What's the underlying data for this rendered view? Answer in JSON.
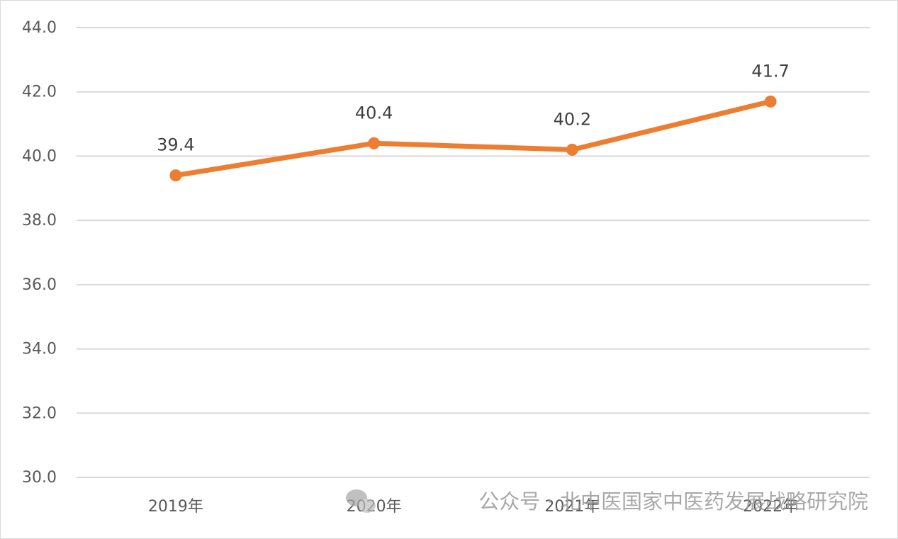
{
  "chart_data": {
    "type": "line",
    "categories": [
      "2019年",
      "2020年",
      "2021年",
      "2022年"
    ],
    "series": [
      {
        "name": "value",
        "color": "#ed7d31",
        "values": [
          39.4,
          40.4,
          40.2,
          41.7
        ]
      }
    ],
    "ylim": [
      30,
      44
    ],
    "yticks": [
      {
        "value": 30,
        "label": "30.0"
      },
      {
        "value": 32,
        "label": "32.0"
      },
      {
        "value": 34,
        "label": "34.0"
      },
      {
        "value": 36,
        "label": "36.0"
      },
      {
        "value": 38,
        "label": "38.0"
      },
      {
        "value": 40,
        "label": "40.0"
      },
      {
        "value": 42,
        "label": "42.0"
      },
      {
        "value": 44,
        "label": "44.0"
      }
    ],
    "grid": true,
    "data_labels": true,
    "watermark": "公众号 · 北中医国家中医药发展战略研究院"
  }
}
